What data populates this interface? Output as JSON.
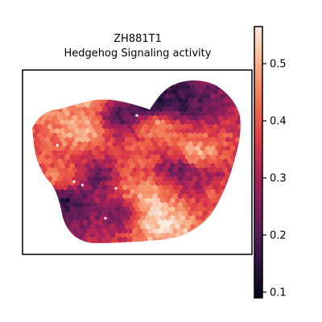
{
  "chart_data": {
    "type": "heatmap",
    "title_line1": "ZH881T1",
    "title_line2": "Hedgehog Signaling activity",
    "xlabel": "",
    "ylabel": "",
    "colorbar": {
      "min": 0.09,
      "max": 0.565,
      "ticks": [
        0.1,
        0.2,
        0.3,
        0.4,
        0.5
      ],
      "tick_labels": [
        "0.1",
        "0.2",
        "0.3",
        "0.4",
        "0.5"
      ],
      "colormap": "rocket"
    },
    "hotspots": [
      {
        "x": 0.62,
        "y": 0.86,
        "value": 0.55
      },
      {
        "x": 0.55,
        "y": 0.72,
        "value": 0.52
      },
      {
        "x": 0.14,
        "y": 0.6,
        "value": 0.45
      },
      {
        "x": 0.45,
        "y": 0.64,
        "value": 0.43
      },
      {
        "x": 0.25,
        "y": 0.3,
        "value": 0.5
      },
      {
        "x": 0.28,
        "y": 0.1,
        "value": 0.5
      },
      {
        "x": 0.6,
        "y": 0.28,
        "value": 0.48
      },
      {
        "x": 0.78,
        "y": 0.46,
        "value": 0.5
      },
      {
        "x": 0.5,
        "y": 0.46,
        "value": 0.4
      },
      {
        "x": 0.88,
        "y": 0.7,
        "value": 0.4
      },
      {
        "x": 0.16,
        "y": 0.73,
        "value": 0.15
      },
      {
        "x": 0.32,
        "y": 0.6,
        "value": 0.22
      },
      {
        "x": 0.7,
        "y": 0.55,
        "value": 0.22
      },
      {
        "x": 0.58,
        "y": 0.15,
        "value": 0.12
      },
      {
        "x": 0.42,
        "y": 0.22,
        "value": 0.2
      },
      {
        "x": 0.7,
        "y": 0.14,
        "value": 0.18
      },
      {
        "x": 0.4,
        "y": 0.8,
        "value": 0.25
      },
      {
        "x": 0.82,
        "y": 0.6,
        "value": 0.28
      }
    ],
    "white_dots": [
      {
        "x": 0.2,
        "y": 0.62
      },
      {
        "x": 0.24,
        "y": 0.64
      },
      {
        "x": 0.4,
        "y": 0.66
      },
      {
        "x": 0.12,
        "y": 0.4
      },
      {
        "x": 0.35,
        "y": 0.84
      },
      {
        "x": 0.5,
        "y": 0.22
      }
    ]
  }
}
